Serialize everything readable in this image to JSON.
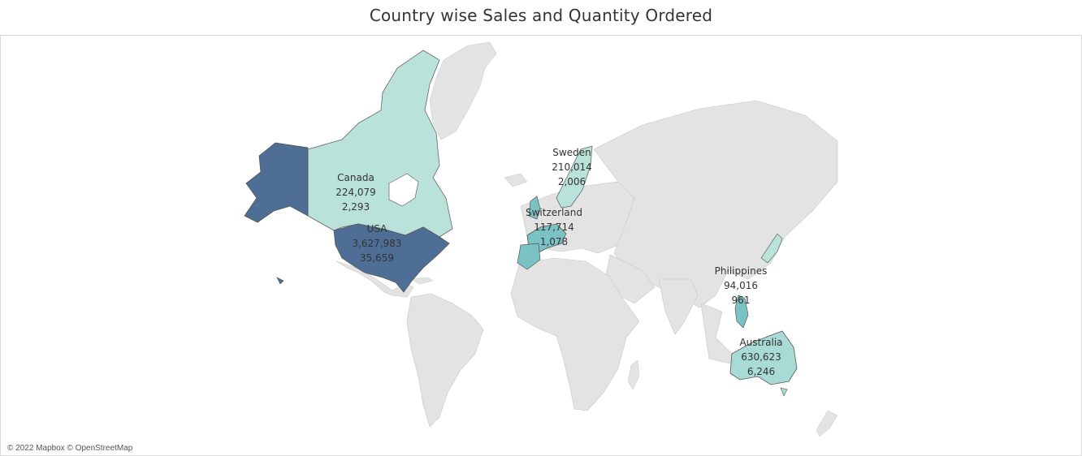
{
  "title": "Country wise Sales and Quantity Ordered",
  "attribution": "© 2022 Mapbox © OpenStreetMap",
  "colors": {
    "land": "#e3e3e3",
    "border": "#c8c8c8",
    "fill_low": "#b9e2da",
    "fill_mid": "#7bc2c4",
    "fill_high": "#4e6e96"
  },
  "countries": [
    {
      "name": "Canada",
      "sales": "224,079",
      "quantity": "2,293"
    },
    {
      "name": "USA",
      "sales": "3,627,983",
      "quantity": "35,659"
    },
    {
      "name": "Sweden",
      "sales": "210,014",
      "quantity": "2,006"
    },
    {
      "name": "Switzerland",
      "sales": "117,714",
      "quantity": "1,078"
    },
    {
      "name": "Philippines",
      "sales": "94,016",
      "quantity": "961"
    },
    {
      "name": "Australia",
      "sales": "630,623",
      "quantity": "6,246"
    }
  ]
}
